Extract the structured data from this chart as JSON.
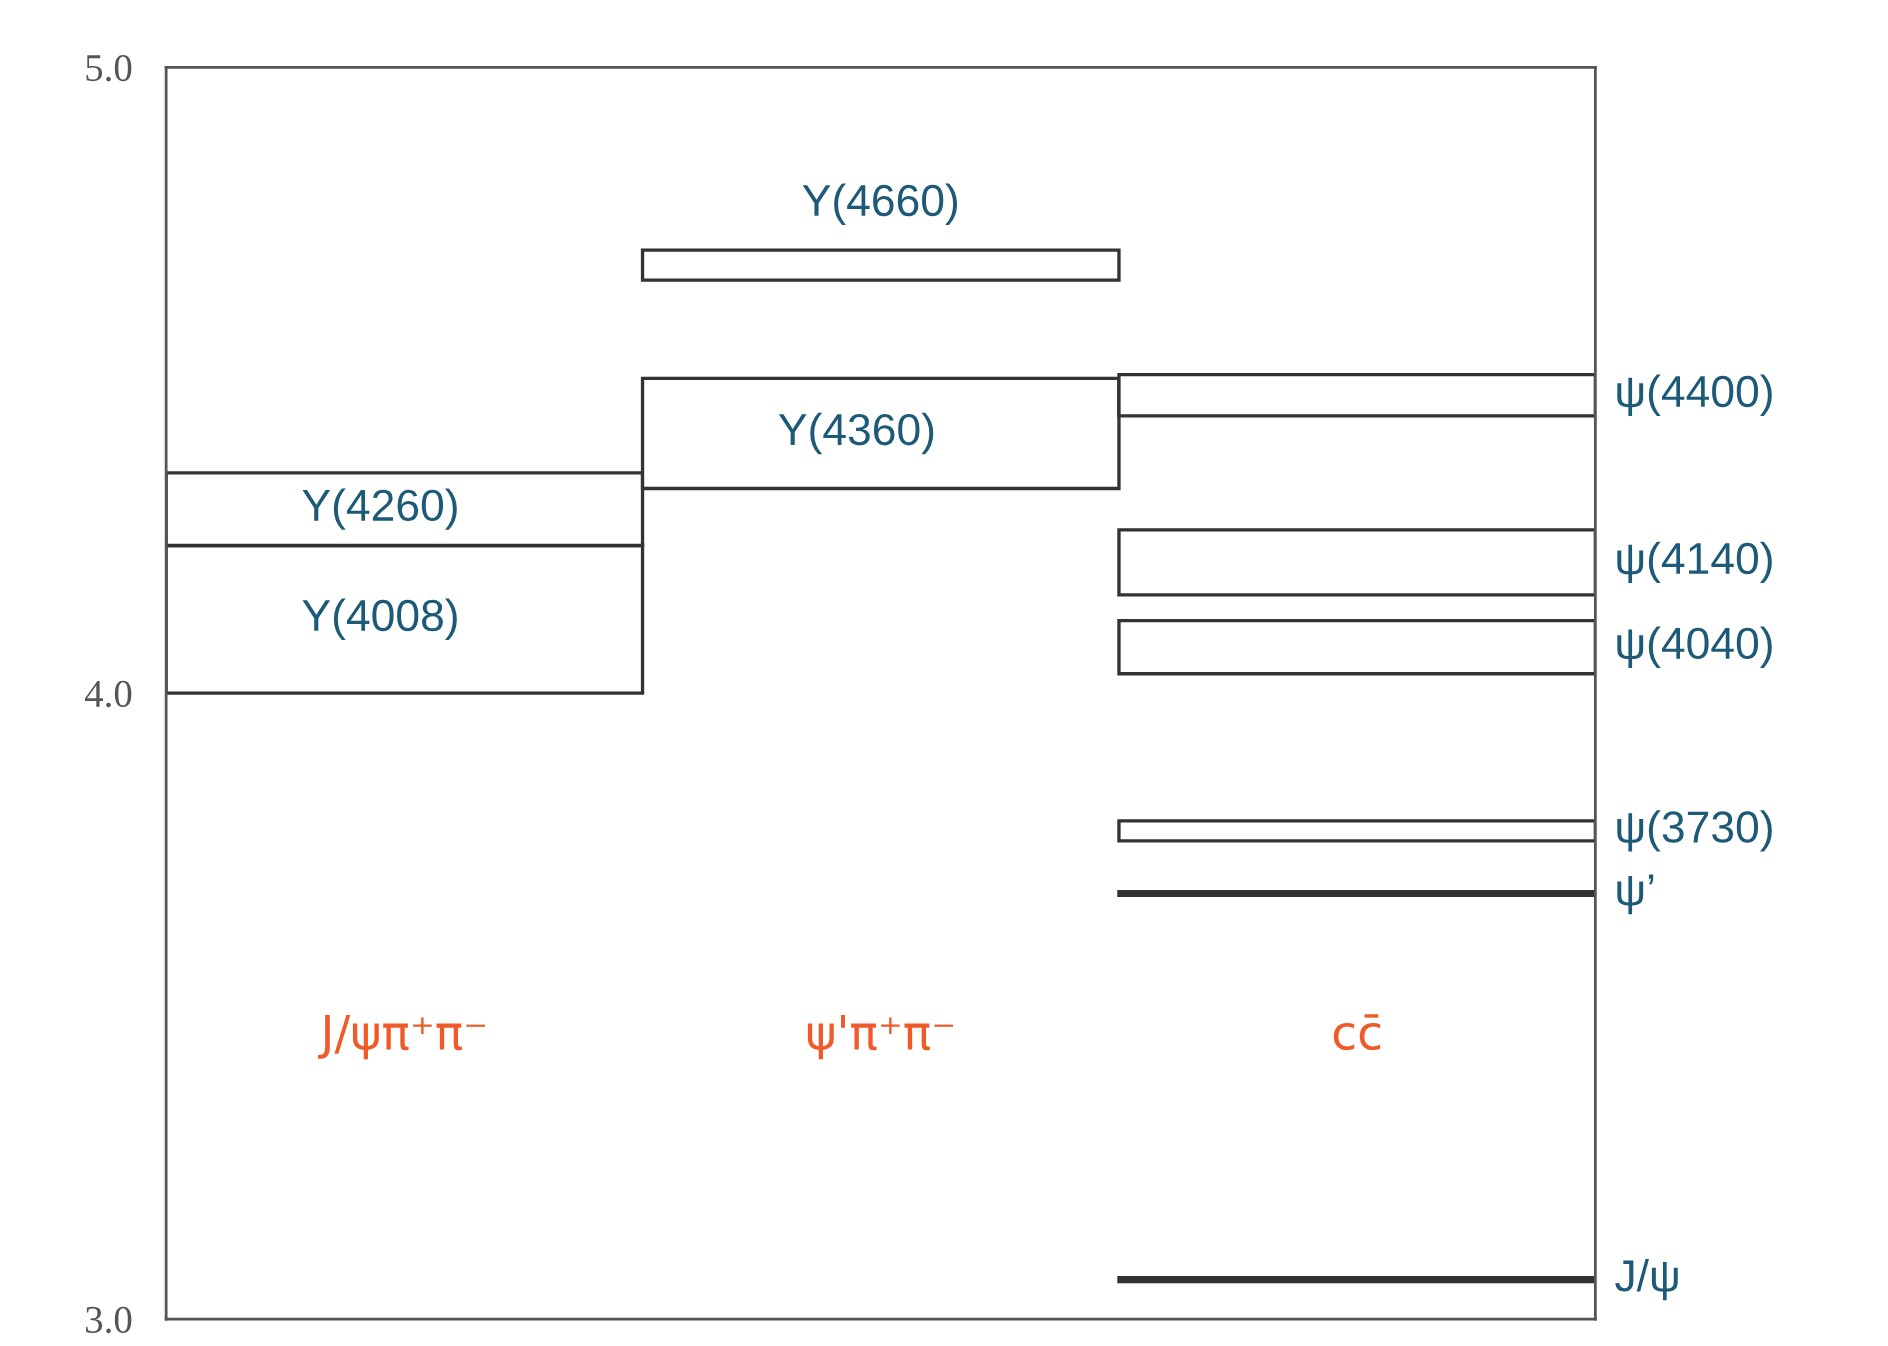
{
  "chart_data": {
    "type": "bar",
    "categories": [
      "J/ψπ⁺π⁻",
      "ψ'π⁺π⁻",
      "cc̄"
    ],
    "ylim": [
      3.0,
      5.0
    ],
    "yticks": [
      {
        "value": 3.0,
        "label": "3.0"
      },
      {
        "value": 4.0,
        "label": "4.0"
      },
      {
        "value": 5.0,
        "label": "5.0"
      }
    ],
    "grid": false,
    "legend": false,
    "series": [
      {
        "name": "Y(4008)",
        "color": "#ffffff",
        "base": [
          4.0,
          null,
          null
        ],
        "values": [
          0.236,
          null,
          null
        ]
      },
      {
        "name": "Y(4260)",
        "color": "#ffffff",
        "base": [
          4.236,
          null,
          null
        ],
        "values": [
          0.116,
          null,
          null
        ]
      },
      {
        "name": "Y(4660)",
        "color": "#ffffff",
        "base": [
          null,
          4.66,
          null
        ],
        "values": [
          null,
          0.048,
          null
        ]
      },
      {
        "name": "Y(4360)",
        "color": "#ffffff",
        "base": [
          null,
          4.327,
          null
        ],
        "values": [
          null,
          0.176,
          null
        ]
      },
      {
        "name": "ψ(4400)",
        "color": "#ffffff",
        "base": [
          null,
          null,
          4.443
        ],
        "values": [
          null,
          null,
          0.066
        ]
      },
      {
        "name": "ψ(4140)",
        "color": "#ffffff",
        "base": [
          null,
          null,
          4.157
        ],
        "values": [
          null,
          null,
          0.104
        ]
      },
      {
        "name": "ψ(4040)",
        "color": "#ffffff",
        "base": [
          null,
          null,
          4.031
        ],
        "values": [
          null,
          null,
          0.085
        ]
      },
      {
        "name": "ψ(3730)",
        "color": "#ffffff",
        "base": [
          null,
          null,
          3.764
        ],
        "values": [
          null,
          null,
          0.032
        ]
      },
      {
        "name": "ψ’",
        "color": "#333333",
        "base": [
          null,
          null,
          3.677
        ],
        "values": [
          null,
          null,
          0.006
        ]
      },
      {
        "name": "J/ψ",
        "color": "#333333",
        "base": [
          null,
          null,
          3.06
        ],
        "values": [
          null,
          null,
          0.006
        ]
      }
    ]
  }
}
